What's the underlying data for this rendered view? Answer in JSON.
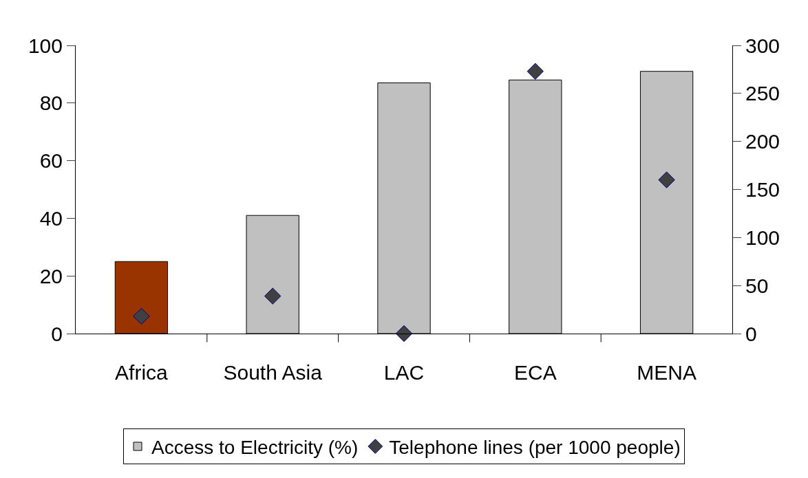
{
  "chart_data": {
    "type": "bar",
    "categories": [
      "Africa",
      "South Asia",
      "LAC",
      "ECA",
      "MENA"
    ],
    "series": [
      {
        "name": "Access to Electricity (%)",
        "color": "#c0c0c0",
        "colors": [
          "#993300",
          "#c0c0c0",
          "#c0c0c0",
          "#c0c0c0",
          "#c0c0c0"
        ],
        "values": [
          25,
          41,
          87,
          88,
          91
        ]
      },
      {
        "name": "Telephone lines (per 1000 people)",
        "type": "scatter",
        "axis": "y2",
        "color": "#404040",
        "marker": "diamond",
        "values": [
          18,
          39,
          0,
          273,
          160
        ]
      }
    ],
    "ylim": [
      0,
      100
    ],
    "yticks": [
      0,
      20,
      40,
      60,
      80,
      100
    ],
    "y2lim": [
      0,
      300
    ],
    "y2ticks": [
      0,
      50,
      100,
      150,
      200,
      250,
      300
    ],
    "legend": "bottom"
  }
}
